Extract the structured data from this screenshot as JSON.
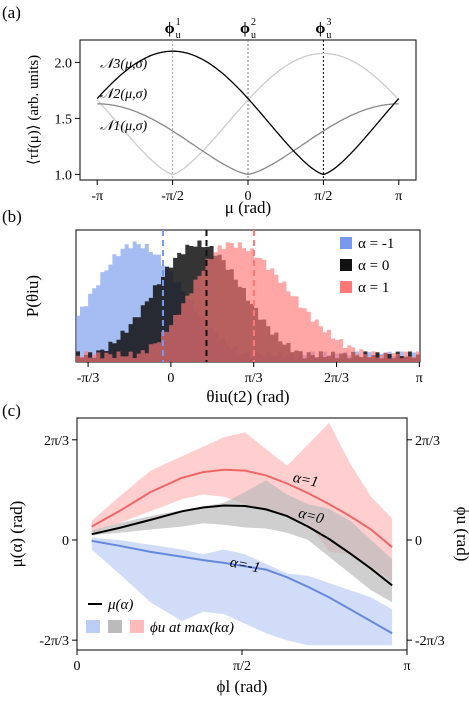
{
  "chart_data": [
    {
      "panel_label": "(a)",
      "type": "line",
      "xlabel": "μ (rad)",
      "ylabel": "⟨τf(μ)⟩ (arb. units)",
      "x_ticks": [
        {
          "value": -3.1416,
          "label": "-π"
        },
        {
          "value": -1.5708,
          "label": "-π/2"
        },
        {
          "value": 0,
          "label": "0"
        },
        {
          "value": 1.5708,
          "label": "π/2"
        },
        {
          "value": 3.1416,
          "label": "π"
        }
      ],
      "y_ticks": [
        {
          "value": 1.0,
          "label": "1.0"
        },
        {
          "value": 1.5,
          "label": "1.5"
        },
        {
          "value": 2.0,
          "label": "2.0"
        }
      ],
      "xlim": [
        -3.5,
        3.5
      ],
      "ylim": [
        0.95,
        2.2
      ],
      "vlines": [
        {
          "x": -1.5708,
          "label": "ϕ",
          "sup": "1",
          "sub": "u",
          "color": "#aaaaaa"
        },
        {
          "x": 0,
          "label": "ϕ",
          "sup": "2",
          "sub": "u",
          "color": "#777777"
        },
        {
          "x": 1.5708,
          "label": "ϕ",
          "sup": "3",
          "sub": "u",
          "color": "#000000"
        }
      ],
      "series": [
        {
          "label": "𝒩1(μ,σ)",
          "color": "#cccccc",
          "center": -1.5708,
          "min": 1.0,
          "max": 2.08
        },
        {
          "label": "𝒩2(μ,σ)",
          "color": "#888888",
          "center": 0,
          "min": 1.0,
          "max": 1.63
        },
        {
          "label": "𝒩3(μ,σ)",
          "color": "#000000",
          "center": 1.5708,
          "min": 1.0,
          "max": 2.1
        }
      ],
      "series_label_order": [
        "𝒩3(μ,σ)",
        "𝒩2(μ,σ)",
        "𝒩1(μ,σ)"
      ]
    },
    {
      "panel_label": "(b)",
      "type": "histogram",
      "xlabel": "θiu(t2) (rad)",
      "ylabel": "P(θiu)",
      "x_ticks": [
        {
          "value": -1.0472,
          "label": "-π/3"
        },
        {
          "value": 0,
          "label": "0"
        },
        {
          "value": 1.0472,
          "label": "π/3"
        },
        {
          "value": 2.0944,
          "label": "2π/3"
        },
        {
          "value": 3.1416,
          "label": "π"
        }
      ],
      "xlim": [
        -1.2,
        3.15
      ],
      "legend": "top-right",
      "series": [
        {
          "name": "α = -1",
          "color": "#7799ee",
          "mode": -0.45,
          "spread_left": 0.75,
          "spread_right": 0.85,
          "mean": -0.1
        },
        {
          "name": "α = 0",
          "color": "#111111",
          "mode": 0.35,
          "spread_left": 0.8,
          "spread_right": 0.8,
          "mean": 0.45
        },
        {
          "name": "α = 1",
          "color": "#ff7777",
          "mode": 0.75,
          "spread_left": 0.7,
          "spread_right": 1.05,
          "mean": 1.05
        }
      ]
    },
    {
      "panel_label": "(c)",
      "type": "line",
      "xlabel": "ϕl (rad)",
      "ylabel": "μ(α) (rad)",
      "ylabel_right": "ϕu (rad)",
      "x_ticks": [
        {
          "value": 0,
          "label": "0"
        },
        {
          "value": 1.5708,
          "label": "π/2"
        },
        {
          "value": 3.1416,
          "label": "π"
        }
      ],
      "y_ticks": [
        {
          "value": -2.0944,
          "label": "-2π/3"
        },
        {
          "value": 0,
          "label": "0"
        },
        {
          "value": 2.0944,
          "label": "2π/3"
        }
      ],
      "xlim": [
        0,
        3.1416
      ],
      "ylim": [
        -2.3,
        2.55
      ],
      "series": [
        {
          "name": "α=1",
          "color": "#ee6666",
          "fill": "#ffbbbb",
          "x": [
            0.14,
            0.4,
            0.7,
            1.0,
            1.2,
            1.4,
            1.6,
            1.8,
            2.0,
            2.2,
            2.4,
            2.6,
            2.8,
            3.0
          ],
          "values": [
            0.28,
            0.6,
            1.0,
            1.3,
            1.42,
            1.47,
            1.45,
            1.35,
            1.18,
            0.98,
            0.75,
            0.5,
            0.22,
            -0.15
          ],
          "band_upper": [
            0.4,
            0.9,
            1.45,
            1.75,
            1.95,
            2.15,
            2.25,
            1.9,
            1.55,
            2.0,
            2.45,
            1.6,
            0.9,
            0.45
          ],
          "band_lower": [
            0.15,
            0.35,
            0.6,
            0.85,
            0.95,
            0.9,
            0.75,
            0.6,
            0.5,
            0.35,
            -0.25,
            -0.3,
            -0.55,
            -0.85
          ]
        },
        {
          "name": "α=0",
          "color": "#000000",
          "fill": "#bbbbbb",
          "x": [
            0.14,
            0.4,
            0.7,
            1.0,
            1.2,
            1.4,
            1.6,
            1.8,
            2.0,
            2.2,
            2.4,
            2.6,
            2.8,
            3.0
          ],
          "values": [
            0.12,
            0.25,
            0.42,
            0.6,
            0.68,
            0.72,
            0.71,
            0.64,
            0.5,
            0.28,
            0.02,
            -0.28,
            -0.6,
            -0.95
          ],
          "band_upper": [
            0.2,
            0.35,
            0.5,
            0.62,
            0.7,
            0.78,
            1.0,
            1.25,
            0.95,
            0.75,
            0.65,
            0.4,
            0.0,
            -0.4
          ],
          "band_lower": [
            0.1,
            0.15,
            0.22,
            0.28,
            0.35,
            0.32,
            0.26,
            0.24,
            0.15,
            0.0,
            -0.35,
            -0.7,
            -1.05,
            -1.3
          ]
        },
        {
          "name": "α=-1",
          "color": "#6688dd",
          "fill": "#bccdf5",
          "x": [
            0.14,
            0.4,
            0.7,
            1.0,
            1.2,
            1.4,
            1.6,
            1.8,
            2.0,
            2.2,
            2.4,
            2.6,
            2.8,
            3.0
          ],
          "values": [
            -0.02,
            -0.12,
            -0.25,
            -0.35,
            -0.42,
            -0.48,
            -0.55,
            -0.62,
            -0.78,
            -0.98,
            -1.2,
            -1.45,
            -1.7,
            -1.95
          ],
          "band_upper": [
            0.05,
            0.0,
            -0.1,
            -0.2,
            -0.3,
            -0.2,
            -0.3,
            -0.5,
            -0.7,
            -0.75,
            -0.9,
            -1.05,
            -1.2,
            -1.45
          ],
          "band_lower": [
            -0.2,
            -0.7,
            -1.3,
            -1.7,
            -1.5,
            -1.55,
            -1.75,
            -1.95,
            -2.1,
            -2.2,
            -2.2,
            -2.2,
            -2.2,
            -2.2
          ]
        }
      ],
      "legend": {
        "line_label": "μ(α)",
        "band_label": "ϕu at max(kα)",
        "band_colors": [
          "#bccdf5",
          "#bbbbbb",
          "#ffbbbb"
        ]
      }
    }
  ]
}
